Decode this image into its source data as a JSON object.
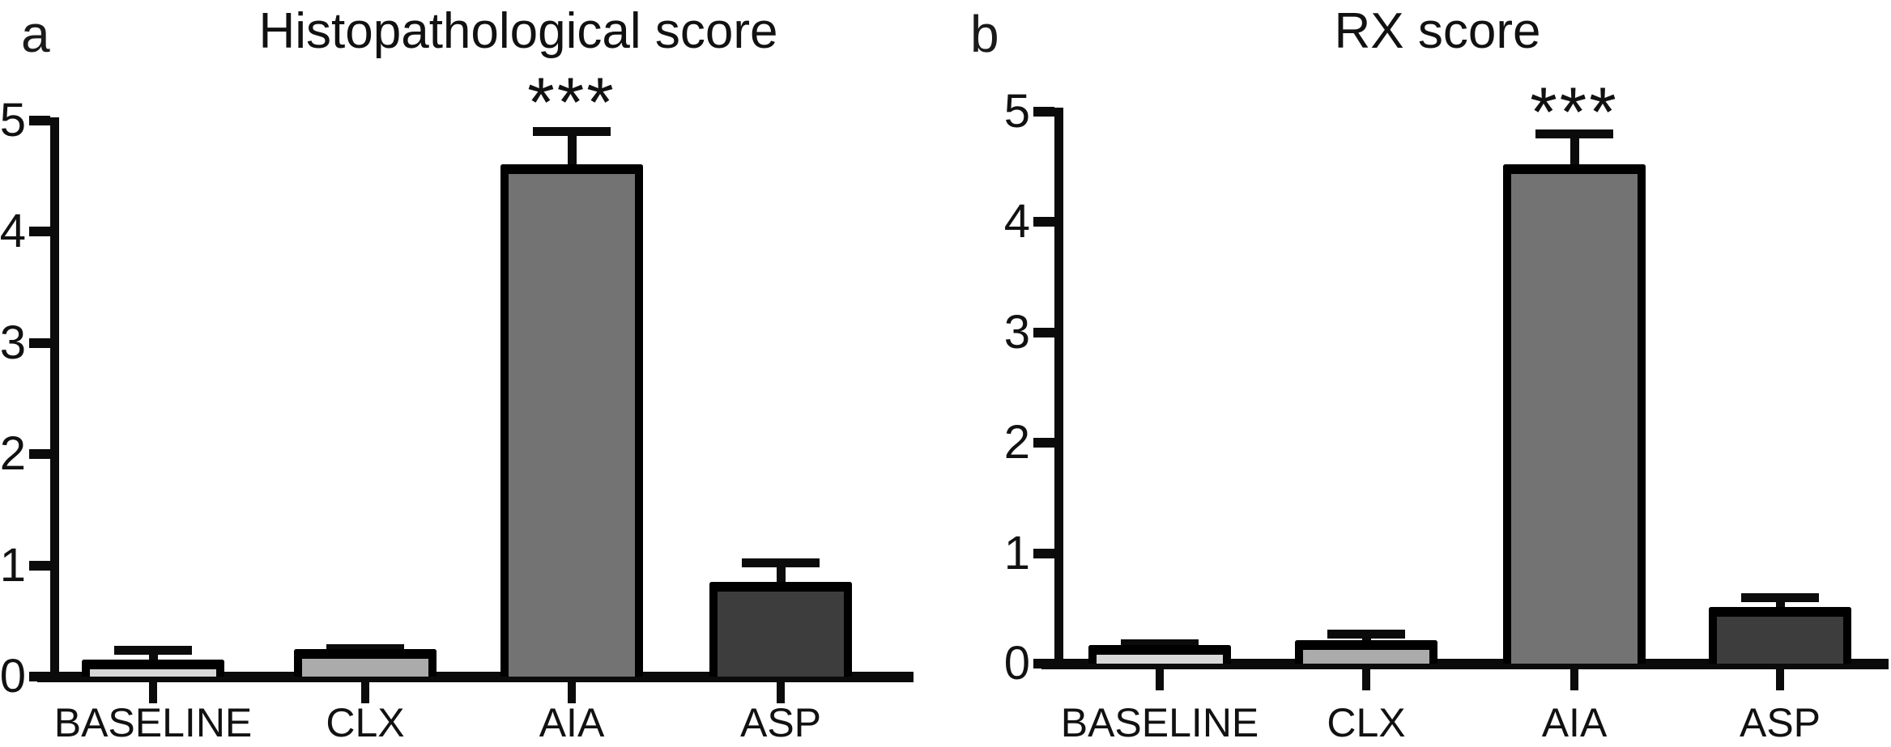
{
  "figure": {
    "background": "#ffffff",
    "ink_color": "#0b0b0b"
  },
  "chart_data": [
    {
      "type": "bar",
      "panel_label": "a",
      "title": "Histopathological score",
      "xlabel": "",
      "ylabel": "",
      "categories": [
        "BASELINE",
        "CLX",
        "AIA",
        "ASP"
      ],
      "values": [
        0.15,
        0.25,
        4.61,
        0.85
      ],
      "errors_upper": [
        0.28,
        0.29,
        4.94,
        1.06
      ],
      "bar_colors": [
        "#d8d8d8",
        "#ababab",
        "#737373",
        "#3d3d3d"
      ],
      "yticks": [
        0,
        1,
        2,
        3,
        4,
        5
      ],
      "ylim": [
        0,
        5
      ],
      "grid": false,
      "legend": null,
      "significance": [
        {
          "category": "AIA",
          "label": "***"
        }
      ]
    },
    {
      "type": "bar",
      "panel_label": "b",
      "title": "RX score",
      "xlabel": "",
      "ylabel": "",
      "categories": [
        "BASELINE",
        "CLX",
        "AIA",
        "ASP"
      ],
      "values": [
        0.17,
        0.21,
        4.52,
        0.51
      ],
      "errors_upper": [
        0.22,
        0.31,
        4.84,
        0.64
      ],
      "bar_colors": [
        "#d8d8d8",
        "#ababab",
        "#737373",
        "#3d3d3d"
      ],
      "yticks": [
        0,
        1,
        2,
        3,
        4,
        5
      ],
      "ylim": [
        0,
        5
      ],
      "grid": false,
      "legend": null,
      "significance": [
        {
          "category": "AIA",
          "label": "***"
        }
      ]
    }
  ]
}
